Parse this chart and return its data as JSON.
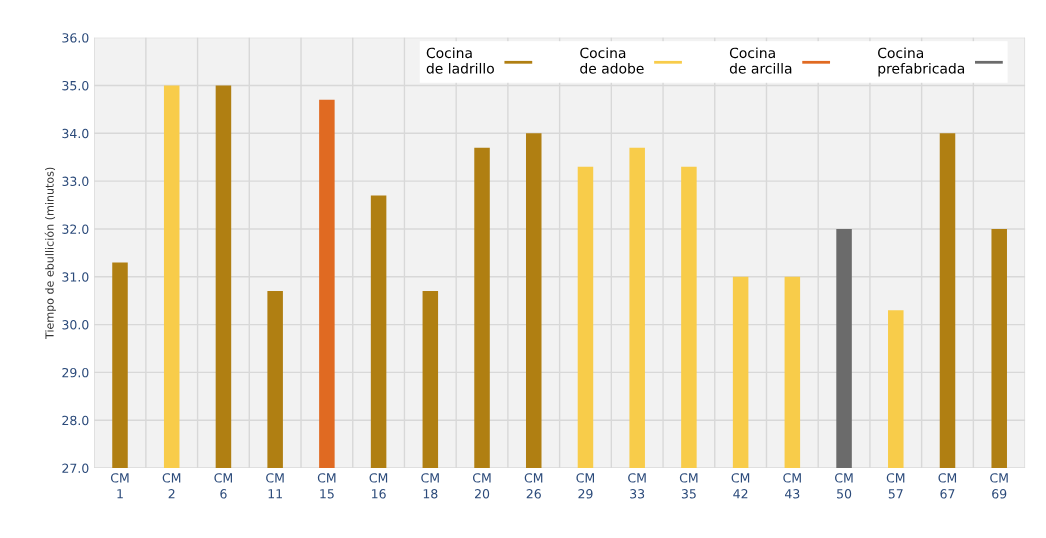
{
  "chart_data": {
    "type": "bar",
    "ylabel": "Tiempo de ebullición (minutos)",
    "categories": [
      "CM\n1",
      "CM\n2",
      "CM\n6",
      "CM\n11",
      "CM\n15",
      "CM\n16",
      "CM\n18",
      "CM\n20",
      "CM\n26",
      "CM\n29",
      "CM\n33",
      "CM\n35",
      "CM\n42",
      "CM\n43",
      "CM\n50",
      "CM\n57",
      "CM\n67",
      "CM\n69"
    ],
    "series": [
      {
        "name": "Cocina\nde ladrillo",
        "color": "#b07f12",
        "values": [
          31.3,
          null,
          35.0,
          30.7,
          null,
          32.7,
          30.7,
          33.7,
          34.0,
          null,
          null,
          null,
          null,
          null,
          null,
          null,
          34.0,
          32.0
        ]
      },
      {
        "name": "Cocina\nde adobe",
        "color": "#f8cc4a",
        "values": [
          null,
          35.0,
          null,
          null,
          null,
          null,
          null,
          null,
          null,
          33.3,
          33.7,
          33.3,
          31.0,
          31.0,
          null,
          30.3,
          null,
          null
        ]
      },
      {
        "name": "Cocina\nde arcilla",
        "color": "#e06a22",
        "values": [
          null,
          null,
          null,
          null,
          34.7,
          null,
          null,
          null,
          null,
          null,
          null,
          null,
          null,
          null,
          null,
          null,
          null,
          null
        ]
      },
      {
        "name": "Cocina\nprefabricada",
        "color": "#6b6b6b",
        "values": [
          null,
          null,
          null,
          null,
          null,
          null,
          null,
          null,
          null,
          null,
          null,
          null,
          null,
          null,
          32.0,
          null,
          null,
          null
        ]
      }
    ],
    "ylim": [
      27,
      36
    ],
    "yticks": [
      {
        "value": 27,
        "label": "27.0"
      },
      {
        "value": 28,
        "label": "28.0"
      },
      {
        "value": 29,
        "label": "29.0"
      },
      {
        "value": 30,
        "label": "30.0"
      },
      {
        "value": 31,
        "label": "31.0"
      },
      {
        "value": 32,
        "label": "32.0"
      },
      {
        "value": 33,
        "label": "33.0"
      },
      {
        "value": 34,
        "label": "34.0"
      },
      {
        "value": 35,
        "label": "35.0"
      },
      {
        "value": 36,
        "label": "36.0"
      }
    ],
    "grid": true,
    "legend": "top right"
  }
}
